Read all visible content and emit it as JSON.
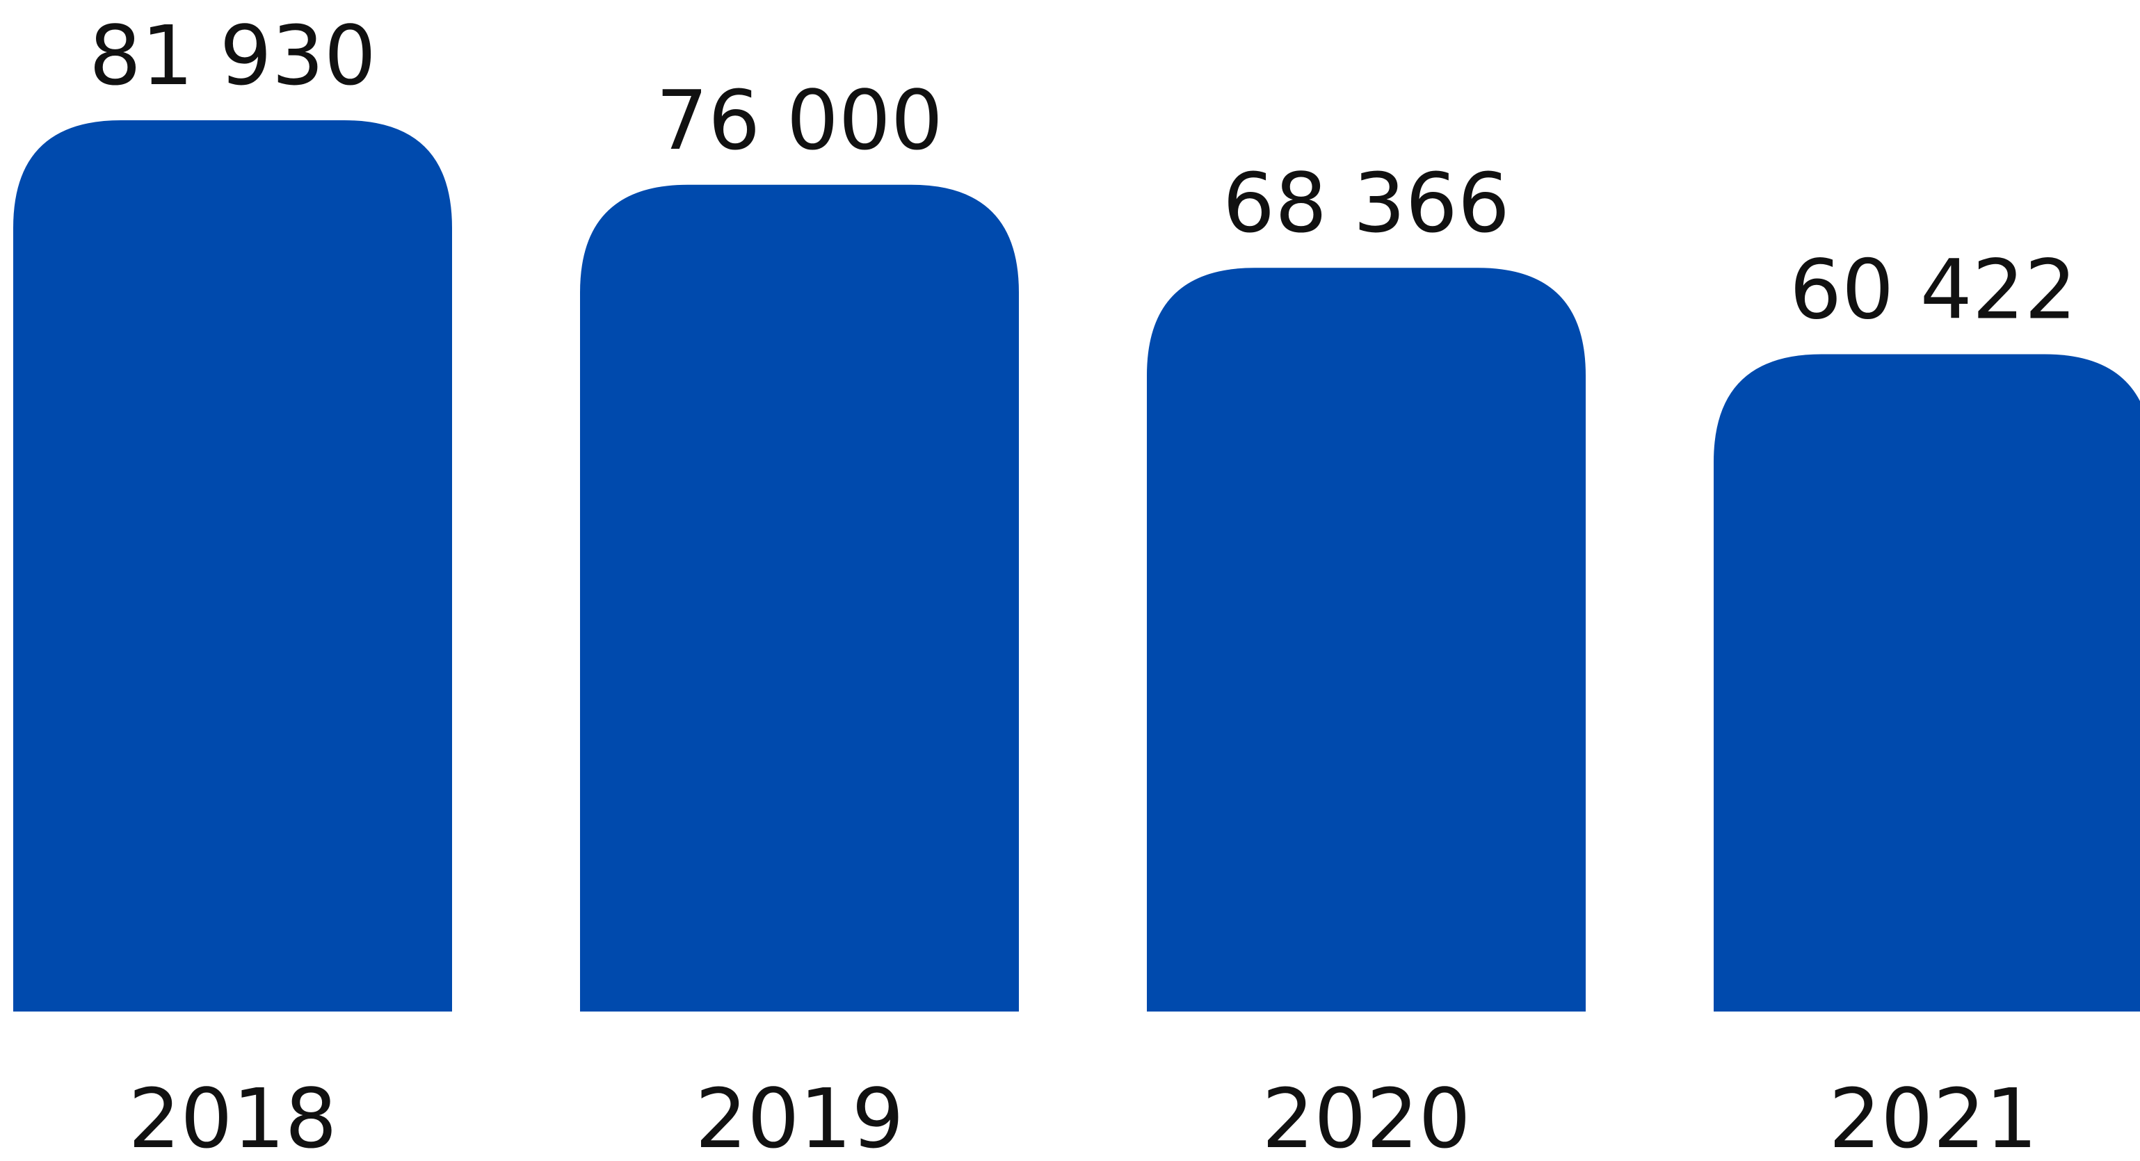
{
  "chart_data": {
    "type": "bar",
    "categories": [
      "2018",
      "2019",
      "2020",
      "2021"
    ],
    "values": [
      81930,
      76000,
      68366,
      60422
    ],
    "value_labels": [
      "81 930",
      "76 000",
      "68 366",
      "60 422"
    ],
    "title": "",
    "xlabel": "",
    "ylabel": "",
    "ylim": [
      0,
      81930
    ],
    "grid": false,
    "legend": "none",
    "bar_color": "#004AAD",
    "text_color": "#111111"
  }
}
